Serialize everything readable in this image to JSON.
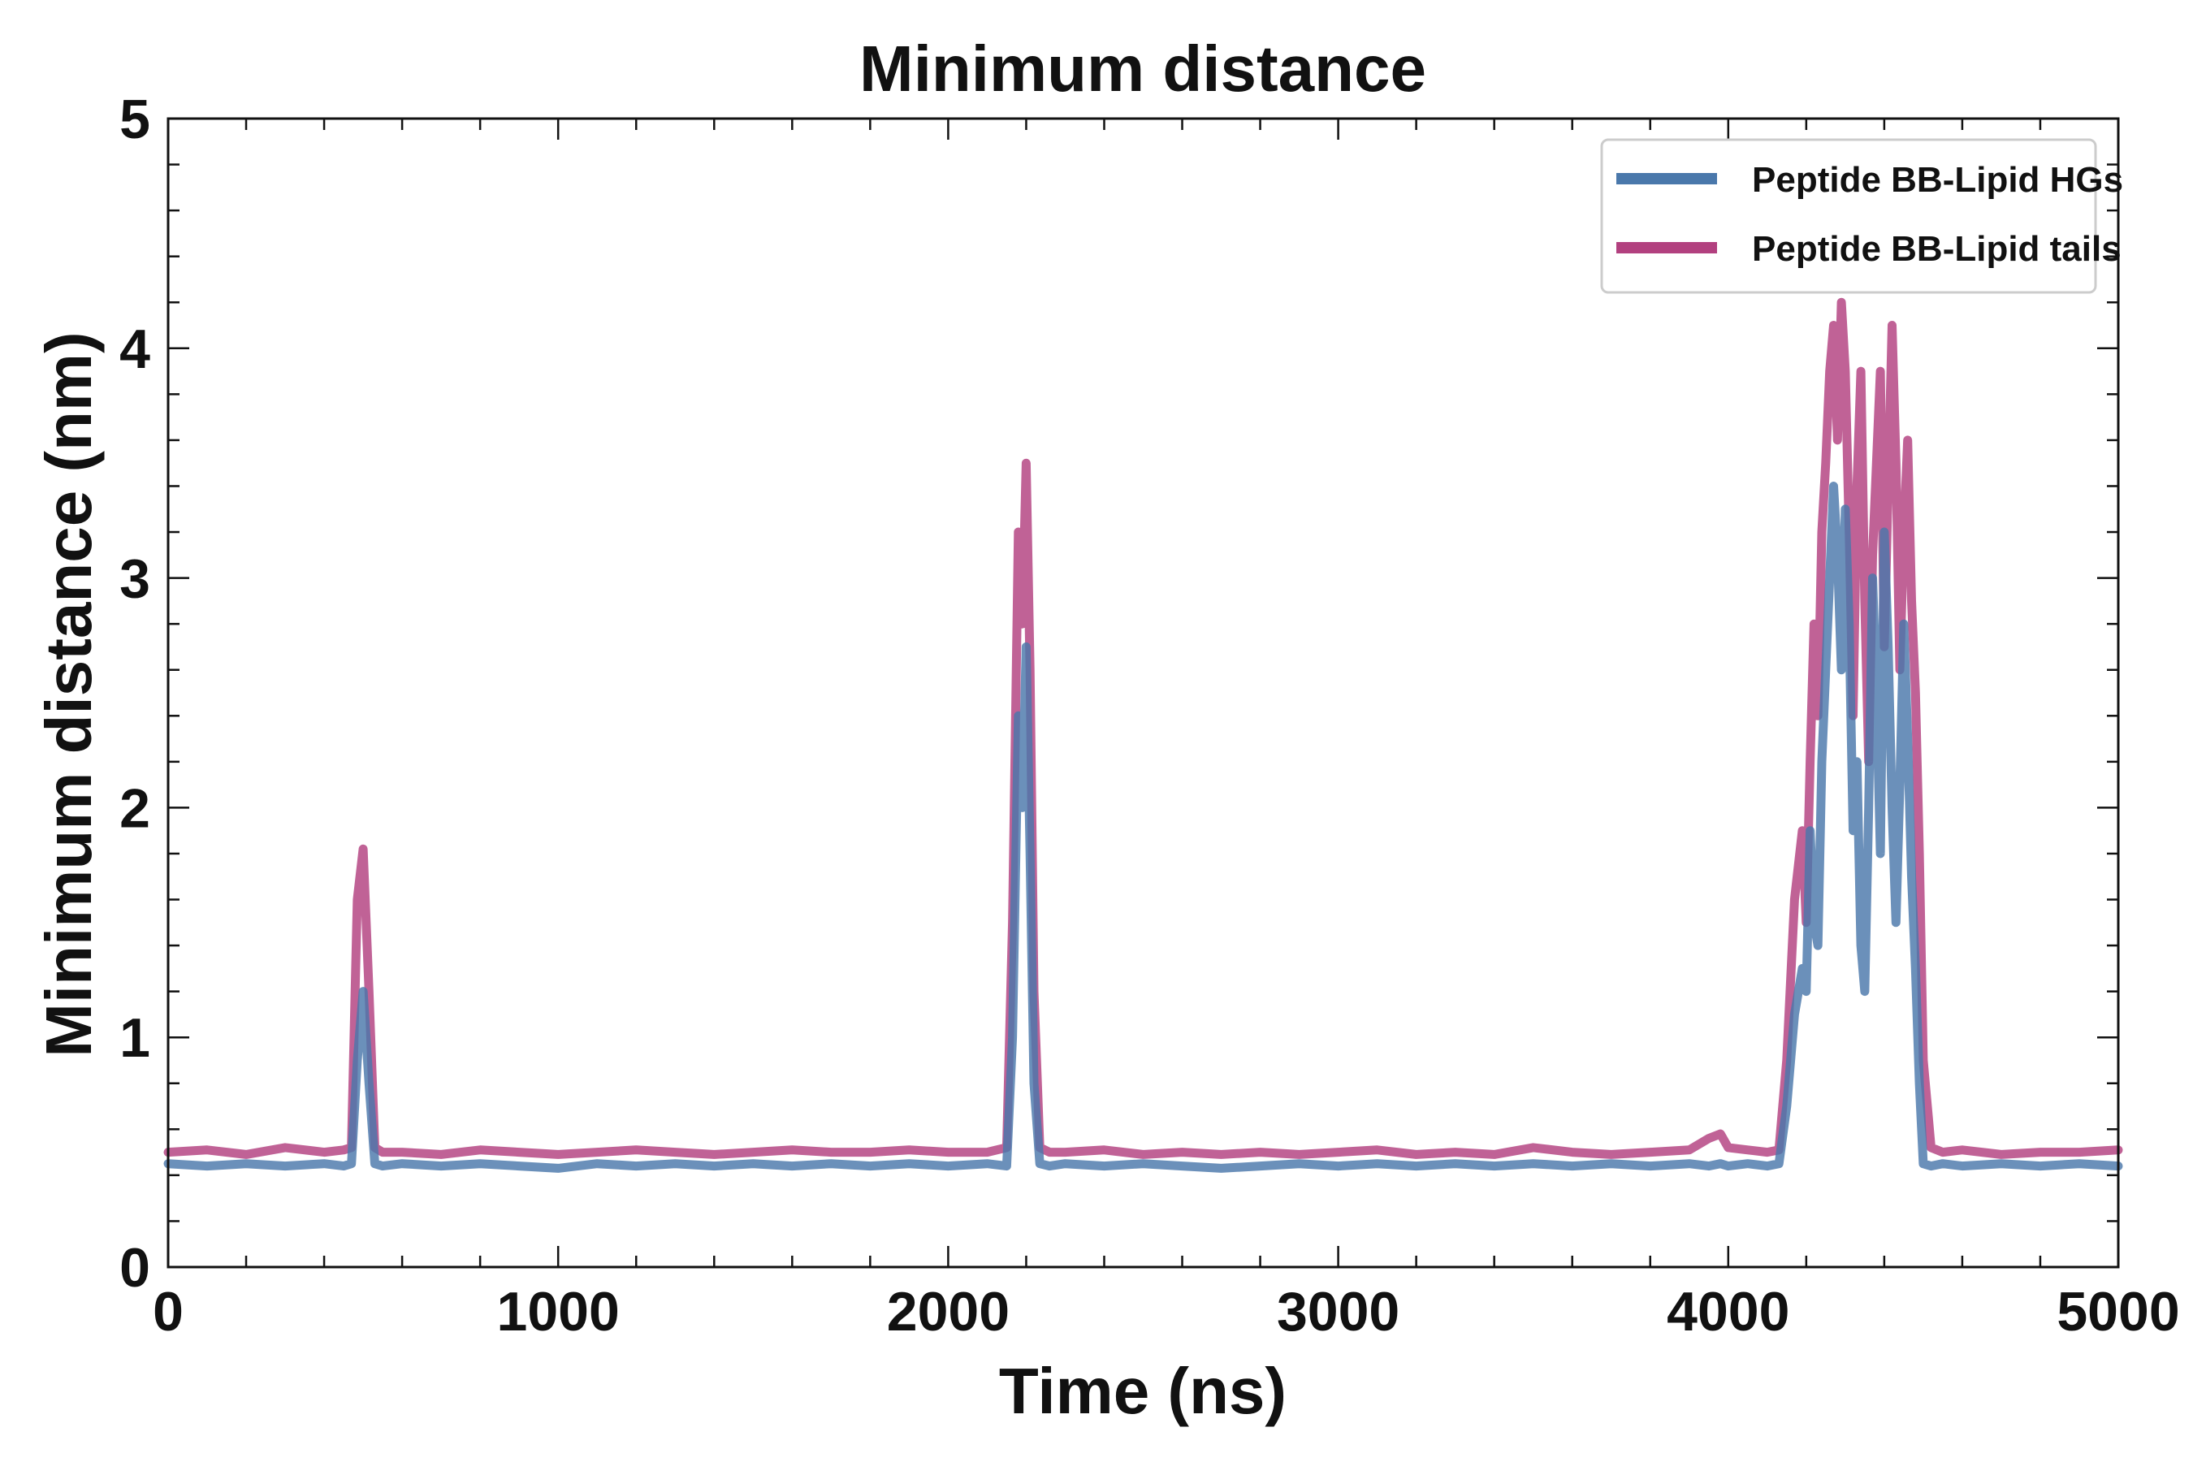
{
  "chart_data": {
    "type": "line",
    "title": "Minimum distance",
    "xlabel": "Time (ns)",
    "ylabel": "Minimum distance (nm)",
    "xlim": [
      0,
      5000
    ],
    "ylim": [
      0,
      5
    ],
    "xticks": [
      0,
      1000,
      2000,
      3000,
      4000,
      5000
    ],
    "yticks": [
      0,
      1,
      2,
      3,
      4,
      5
    ],
    "xtick_labels": [
      "0",
      "1000",
      "2000",
      "3000",
      "4000",
      "5000"
    ],
    "ytick_labels": [
      "0",
      "1",
      "2",
      "3",
      "4",
      "5"
    ],
    "legend_position": "top-right",
    "grid": false,
    "series": [
      {
        "name": "Peptide BB-Lipid tails",
        "color": "#b2407f",
        "x": [
          0,
          100,
          200,
          300,
          400,
          450,
          470,
          485,
          500,
          515,
          530,
          550,
          600,
          700,
          800,
          900,
          1000,
          1100,
          1200,
          1300,
          1400,
          1500,
          1600,
          1700,
          1800,
          1900,
          2000,
          2100,
          2150,
          2165,
          2180,
          2190,
          2200,
          2210,
          2220,
          2235,
          2260,
          2300,
          2400,
          2500,
          2600,
          2700,
          2800,
          2900,
          3000,
          3100,
          3200,
          3300,
          3400,
          3500,
          3600,
          3700,
          3800,
          3900,
          3950,
          3980,
          4000,
          4050,
          4100,
          4130,
          4150,
          4170,
          4190,
          4200,
          4210,
          4220,
          4230,
          4240,
          4250,
          4260,
          4270,
          4280,
          4290,
          4300,
          4310,
          4320,
          4330,
          4340,
          4350,
          4360,
          4370,
          4380,
          4390,
          4400,
          4410,
          4420,
          4430,
          4440,
          4450,
          4460,
          4470,
          4480,
          4490,
          4500,
          4520,
          4550,
          4600,
          4700,
          4800,
          4900,
          5000
        ],
        "y": [
          0.5,
          0.51,
          0.49,
          0.52,
          0.5,
          0.51,
          0.52,
          1.6,
          1.82,
          1.2,
          0.52,
          0.5,
          0.5,
          0.49,
          0.51,
          0.5,
          0.49,
          0.5,
          0.51,
          0.5,
          0.49,
          0.5,
          0.51,
          0.5,
          0.5,
          0.51,
          0.5,
          0.5,
          0.52,
          1.5,
          3.2,
          2.8,
          3.5,
          2.6,
          1.2,
          0.52,
          0.5,
          0.5,
          0.51,
          0.49,
          0.5,
          0.49,
          0.5,
          0.49,
          0.5,
          0.51,
          0.49,
          0.5,
          0.49,
          0.52,
          0.5,
          0.49,
          0.5,
          0.51,
          0.56,
          0.58,
          0.52,
          0.51,
          0.5,
          0.51,
          0.9,
          1.6,
          1.9,
          1.5,
          2.2,
          2.8,
          2.4,
          3.2,
          3.5,
          3.9,
          4.1,
          3.6,
          4.2,
          3.9,
          3.2,
          2.4,
          3.4,
          3.9,
          2.9,
          2.2,
          3.1,
          3.5,
          3.9,
          2.7,
          3.4,
          4.1,
          3.5,
          2.6,
          3.2,
          3.6,
          2.9,
          2.5,
          1.8,
          0.9,
          0.52,
          0.5,
          0.51,
          0.49,
          0.5,
          0.5,
          0.51
        ]
      },
      {
        "name": "Peptide BB-Lipid HGs",
        "color": "#4a78ab",
        "x": [
          0,
          100,
          200,
          300,
          400,
          450,
          470,
          485,
          500,
          515,
          530,
          550,
          600,
          700,
          800,
          900,
          1000,
          1100,
          1200,
          1300,
          1400,
          1500,
          1600,
          1700,
          1800,
          1900,
          2000,
          2100,
          2150,
          2165,
          2180,
          2190,
          2200,
          2210,
          2220,
          2235,
          2260,
          2300,
          2400,
          2500,
          2600,
          2700,
          2800,
          2900,
          3000,
          3100,
          3200,
          3300,
          3400,
          3500,
          3600,
          3700,
          3800,
          3900,
          3950,
          3980,
          4000,
          4050,
          4100,
          4130,
          4150,
          4170,
          4190,
          4200,
          4210,
          4220,
          4230,
          4240,
          4250,
          4260,
          4270,
          4280,
          4290,
          4300,
          4310,
          4320,
          4330,
          4340,
          4350,
          4360,
          4370,
          4380,
          4390,
          4400,
          4410,
          4420,
          4430,
          4440,
          4450,
          4460,
          4470,
          4480,
          4490,
          4500,
          4520,
          4550,
          4600,
          4700,
          4800,
          4900,
          5000
        ],
        "y": [
          0.45,
          0.44,
          0.45,
          0.44,
          0.45,
          0.44,
          0.45,
          0.9,
          1.2,
          0.8,
          0.45,
          0.44,
          0.45,
          0.44,
          0.45,
          0.44,
          0.43,
          0.45,
          0.44,
          0.45,
          0.44,
          0.45,
          0.44,
          0.45,
          0.44,
          0.45,
          0.44,
          0.45,
          0.44,
          1.0,
          2.4,
          2.0,
          2.7,
          1.8,
          0.8,
          0.45,
          0.44,
          0.45,
          0.44,
          0.45,
          0.44,
          0.43,
          0.44,
          0.45,
          0.44,
          0.45,
          0.44,
          0.45,
          0.44,
          0.45,
          0.44,
          0.45,
          0.44,
          0.45,
          0.44,
          0.45,
          0.44,
          0.45,
          0.44,
          0.45,
          0.7,
          1.1,
          1.3,
          1.2,
          1.9,
          1.5,
          1.4,
          2.2,
          2.6,
          3.0,
          3.4,
          3.1,
          2.6,
          3.3,
          2.8,
          1.9,
          2.2,
          1.4,
          1.2,
          2.0,
          3.0,
          2.5,
          1.8,
          3.2,
          2.7,
          2.0,
          1.5,
          2.1,
          2.8,
          2.3,
          1.7,
          1.3,
          0.8,
          0.45,
          0.44,
          0.45,
          0.44,
          0.45,
          0.44,
          0.45,
          0.44
        ]
      }
    ],
    "legend_order": [
      "Peptide BB-Lipid HGs",
      "Peptide BB-Lipid tails"
    ]
  }
}
